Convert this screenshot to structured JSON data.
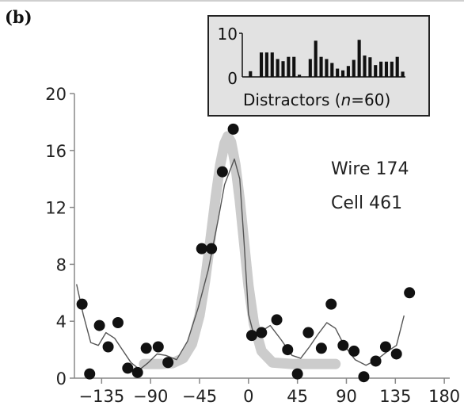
{
  "panel_label": "(b)",
  "annotations": [
    "Wire 174",
    "Cell 461"
  ],
  "chart_data": [
    {
      "type": "scatter",
      "title": "",
      "xlabel": "",
      "ylabel": "",
      "xlim": [
        -160,
        185
      ],
      "ylim": [
        0,
        20
      ],
      "x_ticks": [
        -135,
        -90,
        -45,
        0,
        45,
        90,
        135,
        180
      ],
      "x_tick_labels": [
        "−135",
        "−90",
        "−45",
        "0",
        "45",
        "90",
        "135",
        "180"
      ],
      "y_ticks": [
        0,
        4,
        8,
        12,
        16,
        20
      ],
      "y_tick_labels": [
        "0",
        "4",
        "8",
        "12",
        "16",
        "20"
      ],
      "grid": false,
      "series": [
        {
          "kind": "points",
          "color": "#111111",
          "points": [
            [
              -153,
              5.2
            ],
            [
              -146,
              0.3
            ],
            [
              -137,
              3.7
            ],
            [
              -129,
              2.2
            ],
            [
              -120,
              3.9
            ],
            [
              -111,
              0.7
            ],
            [
              -102,
              0.4
            ],
            [
              -94,
              2.1
            ],
            [
              -83,
              2.2
            ],
            [
              -74,
              1.1
            ],
            [
              -43,
              9.1
            ],
            [
              -34,
              9.1
            ],
            [
              -24,
              14.5
            ],
            [
              -14,
              17.5
            ],
            [
              3,
              3.0
            ],
            [
              12,
              3.2
            ],
            [
              26,
              4.1
            ],
            [
              36,
              2.0
            ],
            [
              45,
              0.3
            ],
            [
              55,
              3.2
            ],
            [
              67,
              2.1
            ],
            [
              76,
              5.2
            ],
            [
              87,
              2.3
            ],
            [
              97,
              1.9
            ],
            [
              106,
              0.1
            ],
            [
              117,
              1.2
            ],
            [
              126,
              2.2
            ],
            [
              136,
              1.7
            ],
            [
              148,
              6.0
            ]
          ]
        },
        {
          "kind": "smooth-line",
          "color": "#555555",
          "points": [
            [
              -158,
              6.6
            ],
            [
              -152,
              4.5
            ],
            [
              -145,
              2.5
            ],
            [
              -138,
              2.3
            ],
            [
              -131,
              3.2
            ],
            [
              -123,
              2.8
            ],
            [
              -116,
              2.0
            ],
            [
              -108,
              1.1
            ],
            [
              -100,
              0.6
            ],
            [
              -92,
              1.1
            ],
            [
              -84,
              1.7
            ],
            [
              -76,
              1.6
            ],
            [
              -66,
              1.3
            ],
            [
              -56,
              2.6
            ],
            [
              -46,
              5.0
            ],
            [
              -37,
              7.6
            ],
            [
              -28,
              11.1
            ],
            [
              -22,
              13.6
            ],
            [
              -18,
              14.4
            ],
            [
              -13,
              15.4
            ],
            [
              -8,
              14.0
            ],
            [
              -4,
              9.5
            ],
            [
              0,
              4.5
            ],
            [
              5,
              3.0
            ],
            [
              12,
              3.3
            ],
            [
              20,
              3.7
            ],
            [
              30,
              2.7
            ],
            [
              40,
              1.6
            ],
            [
              48,
              1.4
            ],
            [
              56,
              2.2
            ],
            [
              64,
              3.1
            ],
            [
              72,
              3.9
            ],
            [
              80,
              3.5
            ],
            [
              88,
              2.3
            ],
            [
              98,
              1.3
            ],
            [
              108,
              0.9
            ],
            [
              118,
              1.3
            ],
            [
              128,
              1.9
            ],
            [
              136,
              2.3
            ],
            [
              143,
              4.4
            ]
          ]
        },
        {
          "kind": "gaussian-band",
          "color": "#cccccc",
          "points": [
            [
              -96,
              1.0
            ],
            [
              -80,
              1.0
            ],
            [
              -70,
              1.05
            ],
            [
              -60,
              1.4
            ],
            [
              -52,
              2.4
            ],
            [
              -45,
              4.4
            ],
            [
              -40,
              6.8
            ],
            [
              -35,
              9.7
            ],
            [
              -30,
              12.8
            ],
            [
              -26,
              15.0
            ],
            [
              -22,
              16.5
            ],
            [
              -19,
              17.0
            ],
            [
              -16,
              16.6
            ],
            [
              -12,
              15.0
            ],
            [
              -8,
              12.5
            ],
            [
              -4,
              9.5
            ],
            [
              0,
              6.5
            ],
            [
              5,
              3.8
            ],
            [
              12,
              1.9
            ],
            [
              22,
              1.1
            ],
            [
              40,
              1.0
            ],
            [
              65,
              1.0
            ],
            [
              80,
              1.0
            ]
          ]
        }
      ]
    },
    {
      "type": "bar",
      "title": "Distractors (n=60)",
      "title_prefix": "Distractors (",
      "title_italic": "n",
      "title_suffix": "=60)",
      "ylim": [
        0,
        10
      ],
      "y_tick_labels": [
        "10",
        "0"
      ],
      "values": [
        0,
        1.3,
        0,
        5.6,
        5.6,
        5.6,
        4.1,
        3.6,
        4.6,
        4.6,
        0.5,
        0,
        4.1,
        8.3,
        4.6,
        4.1,
        3.2,
        1.9,
        1.5,
        2.5,
        3.9,
        8.5,
        4.9,
        4.5,
        2.7,
        3.5,
        3.5,
        3.5,
        4.6,
        1.2
      ]
    }
  ]
}
